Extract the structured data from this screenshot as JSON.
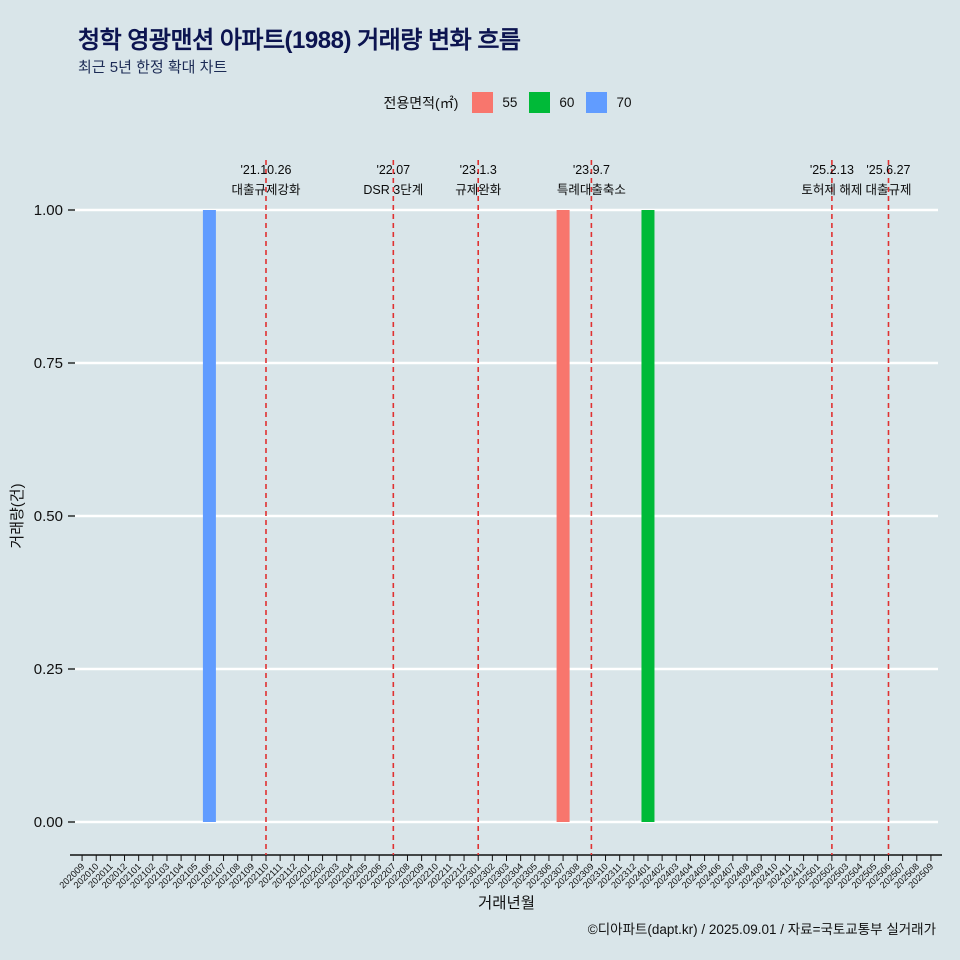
{
  "page": {
    "title": "청학 영광맨션 아파트(1988) 거래량 변화 흐름",
    "subtitle": "최근 5년 한정 확대 차트",
    "footer": "©디아파트(dapt.kr) / 2025.09.01 / 자료=국토교통부 실거래가"
  },
  "legend": {
    "label": "전용면적(㎡)",
    "items": [
      {
        "label": "55",
        "color": "#F8766D"
      },
      {
        "label": "60",
        "color": "#00BA38"
      },
      {
        "label": "70",
        "color": "#619CFF"
      }
    ]
  },
  "chart_data": {
    "type": "bar",
    "title": "청학 영광맨션 아파트(1988) 거래량 변화 흐름",
    "xlabel": "거래년월",
    "ylabel": "거래량(건)",
    "ylim": [
      0,
      1
    ],
    "ytick_values": [
      0,
      0.25,
      0.5,
      0.75,
      1
    ],
    "ytick_labels": [
      "0.00",
      "0.25",
      "0.50",
      "0.75",
      "1.00"
    ],
    "grid": true,
    "legend_position": "top",
    "categories": [
      "202009",
      "202010",
      "202011",
      "202012",
      "202101",
      "202102",
      "202103",
      "202104",
      "202105",
      "202106",
      "202107",
      "202108",
      "202109",
      "202110",
      "202111",
      "202112",
      "202201",
      "202202",
      "202203",
      "202204",
      "202205",
      "202206",
      "202207",
      "202208",
      "202209",
      "202210",
      "202211",
      "202212",
      "202301",
      "202302",
      "202303",
      "202304",
      "202305",
      "202306",
      "202307",
      "202308",
      "202309",
      "202310",
      "202311",
      "202312",
      "202401",
      "202402",
      "202403",
      "202404",
      "202405",
      "202406",
      "202407",
      "202408",
      "202409",
      "202410",
      "202411",
      "202412",
      "202501",
      "202502",
      "202503",
      "202504",
      "202505",
      "202506",
      "202507",
      "202508",
      "202509"
    ],
    "bars": [
      {
        "category": "202106",
        "series": "70",
        "value": 1,
        "color": "#619CFF"
      },
      {
        "category": "202307",
        "series": "55",
        "value": 1,
        "color": "#F8766D"
      },
      {
        "category": "202401",
        "series": "60",
        "value": 1,
        "color": "#00BA38"
      }
    ],
    "annotations": [
      {
        "category": "202110",
        "date": "'21.10.26",
        "label": "대출규제강화"
      },
      {
        "category": "202207",
        "date": "'22.07",
        "label": "DSR 3단계"
      },
      {
        "category": "202301",
        "date": "'23.1.3",
        "label": "규제완화"
      },
      {
        "category": "202309",
        "date": "'23.9.7",
        "label": "특례대출축소"
      },
      {
        "category": "202502",
        "date": "'25.2.13",
        "label": "토허제 해제"
      },
      {
        "category": "202506",
        "date": "'25.6.27",
        "label": "대출규제"
      }
    ],
    "colors": {
      "background": "#d9e5e9",
      "grid": "#ffffff",
      "axis": "#111111",
      "annotation": "#e03131",
      "annotation_text": "#0b0b0b"
    }
  }
}
